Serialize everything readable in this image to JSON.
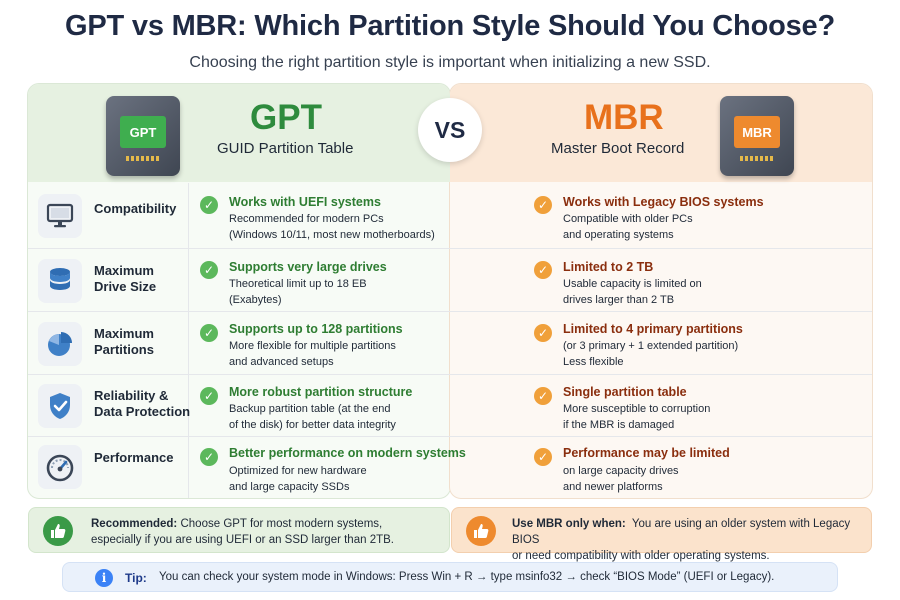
{
  "title": "GPT vs MBR: Which Partition Style Should You Choose?",
  "subtitle": "Choosing the right partition style is important when initializing a new SSD.",
  "vs_label": "VS",
  "gpt": {
    "drive_chip": "GPT",
    "name": "GPT",
    "full_name": "GUID Partition Table",
    "accent": "#2e8b3d"
  },
  "mbr": {
    "drive_chip": "MBR",
    "name": "MBR",
    "full_name": "Master Boot Record",
    "accent": "#e8711c"
  },
  "rows": [
    {
      "icon": "monitor-icon",
      "label_lines": [
        "Compatibility"
      ],
      "gpt_heading": "Works with UEFI systems",
      "gpt_lines": [
        "Recommended for modern PCs",
        "(Windows 10/11, most new motherboards)"
      ],
      "mbr_heading": "Works with Legacy BIOS systems",
      "mbr_lines": [
        "Compatible with older PCs",
        "and operating systems"
      ]
    },
    {
      "icon": "database-icon",
      "label_lines": [
        "Maximum",
        "Drive Size"
      ],
      "gpt_heading": "Supports very large drives",
      "gpt_lines": [
        "Theoretical limit up to 18 EB",
        "(Exabytes)"
      ],
      "mbr_heading": "Limited to 2 TB",
      "mbr_lines": [
        "Usable capacity is limited on",
        "drives larger than 2 TB"
      ]
    },
    {
      "icon": "pie-chart-icon",
      "label_lines": [
        "Maximum",
        "Partitions"
      ],
      "gpt_heading": "Supports up to 128 partitions",
      "gpt_lines": [
        "More flexible for multiple partitions",
        "and advanced setups"
      ],
      "mbr_heading": "Limited to 4 primary partitions",
      "mbr_lines": [
        "(or 3 primary + 1 extended partition)",
        "Less flexible"
      ]
    },
    {
      "icon": "shield-check-icon",
      "label_lines": [
        "Reliability &",
        "Data Protection"
      ],
      "gpt_heading": "More robust partition structure",
      "gpt_lines": [
        "Backup partition table (at the end",
        "of the disk) for better data integrity"
      ],
      "mbr_heading": "Single partition table",
      "mbr_lines": [
        "More susceptible to corruption",
        "if the MBR is damaged"
      ]
    },
    {
      "icon": "speedometer-icon",
      "label_lines": [
        "Performance"
      ],
      "gpt_heading": "Better performance on modern systems",
      "gpt_lines": [
        "Optimized for new hardware",
        "and large capacity SSDs"
      ],
      "mbr_heading": "Performance may be limited",
      "mbr_lines": [
        "on large capacity drives",
        "and newer platforms"
      ]
    }
  ],
  "recommended": {
    "label": "Recommended:",
    "line1": "Choose GPT for most modern systems,",
    "line2": "especially if you are using UEFI or an SSD larger than 2TB."
  },
  "mbr_only": {
    "label": "Use MBR only when:",
    "line1": "You are using an older system with Legacy BIOS",
    "line2": "or need compatibility with older operating systems."
  },
  "tip": {
    "label": "Tip:",
    "text": "You can check your system mode in Windows:  Press Win + R → type msinfo32 → check “BIOS Mode” (UEFI or Legacy)."
  },
  "colors": {
    "gpt_check": "#5cb85c",
    "mbr_check": "#f0a03a",
    "icon_blue": "#2f6db3"
  }
}
